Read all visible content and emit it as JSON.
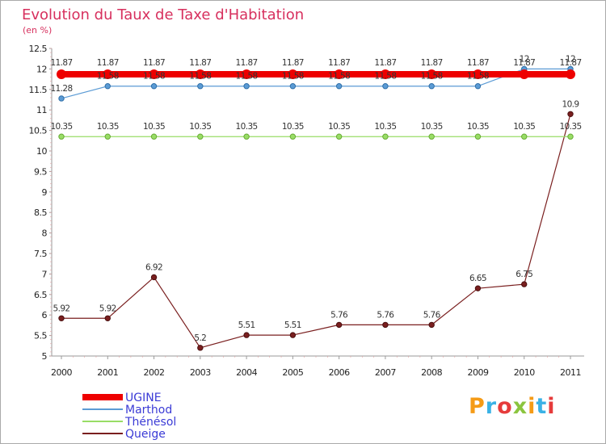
{
  "page": {
    "title": "Evolution du Taux de Taxe d'Habitation",
    "subtitle": "(en %)"
  },
  "chart_data": {
    "type": "line",
    "title": "Evolution du Taux de Taxe d'Habitation",
    "ylabel": "(en %)",
    "xlabel": "",
    "x": [
      "2000",
      "2001",
      "2002",
      "2003",
      "2004",
      "2005",
      "2006",
      "2007",
      "2008",
      "2009",
      "2010",
      "2011"
    ],
    "ylim": [
      5,
      12.5
    ],
    "yticks": [
      "5",
      "5.5",
      "6",
      "6.5",
      "7",
      "7.5",
      "8",
      "8.5",
      "9",
      "9.5",
      "10",
      "10.5",
      "11",
      "11.5",
      "12",
      "12.5"
    ],
    "grid": false,
    "legend_position": "bottom-left",
    "series": [
      {
        "name": "UGINE",
        "color": "#ee0000",
        "values": [
          11.87,
          11.87,
          11.87,
          11.87,
          11.87,
          11.87,
          11.87,
          11.87,
          11.87,
          11.87,
          11.87,
          11.87
        ],
        "labels": [
          "11.87",
          "11.87",
          "11.87",
          "11.87",
          "11.87",
          "11.87",
          "11.87",
          "11.87",
          "11.87",
          "11.87",
          "11.87",
          "11.87"
        ]
      },
      {
        "name": "Marthod",
        "color": "#5b9bd5",
        "values": [
          11.28,
          11.58,
          11.58,
          11.58,
          11.58,
          11.58,
          11.58,
          11.58,
          11.58,
          11.58,
          12,
          12
        ],
        "labels": [
          "11.28",
          "11.58",
          "11.58",
          "11.58",
          "11.58",
          "11.58",
          "11.58",
          "11.58",
          "11.58",
          "11.58",
          "12",
          "12"
        ]
      },
      {
        "name": "Thénésol",
        "color": "#99dd66",
        "values": [
          10.35,
          10.35,
          10.35,
          10.35,
          10.35,
          10.35,
          10.35,
          10.35,
          10.35,
          10.35,
          10.35,
          10.35
        ],
        "labels": [
          "10.35",
          "10.35",
          "10.35",
          "10.35",
          "10.35",
          "10.35",
          "10.35",
          "10.35",
          "10.35",
          "10.35",
          "10.35",
          "10.35"
        ]
      },
      {
        "name": "Queige",
        "color": "#7a1f1f",
        "values": [
          5.92,
          5.92,
          6.92,
          5.2,
          5.51,
          5.51,
          5.76,
          5.76,
          5.76,
          6.65,
          6.75,
          10.9
        ],
        "labels": [
          "5.92",
          "5.92",
          "6.92",
          "5.2",
          "5.51",
          "5.51",
          "5.76",
          "5.76",
          "5.76",
          "6.65",
          "6.75",
          "10.9"
        ]
      }
    ]
  },
  "logo": {
    "text": "Proxiti",
    "letter_colors": [
      "#f59b16",
      "#3ab2e6",
      "#e63b3b",
      "#8bc53f",
      "#f59b16",
      "#3ab2e6",
      "#e63b3b"
    ]
  }
}
